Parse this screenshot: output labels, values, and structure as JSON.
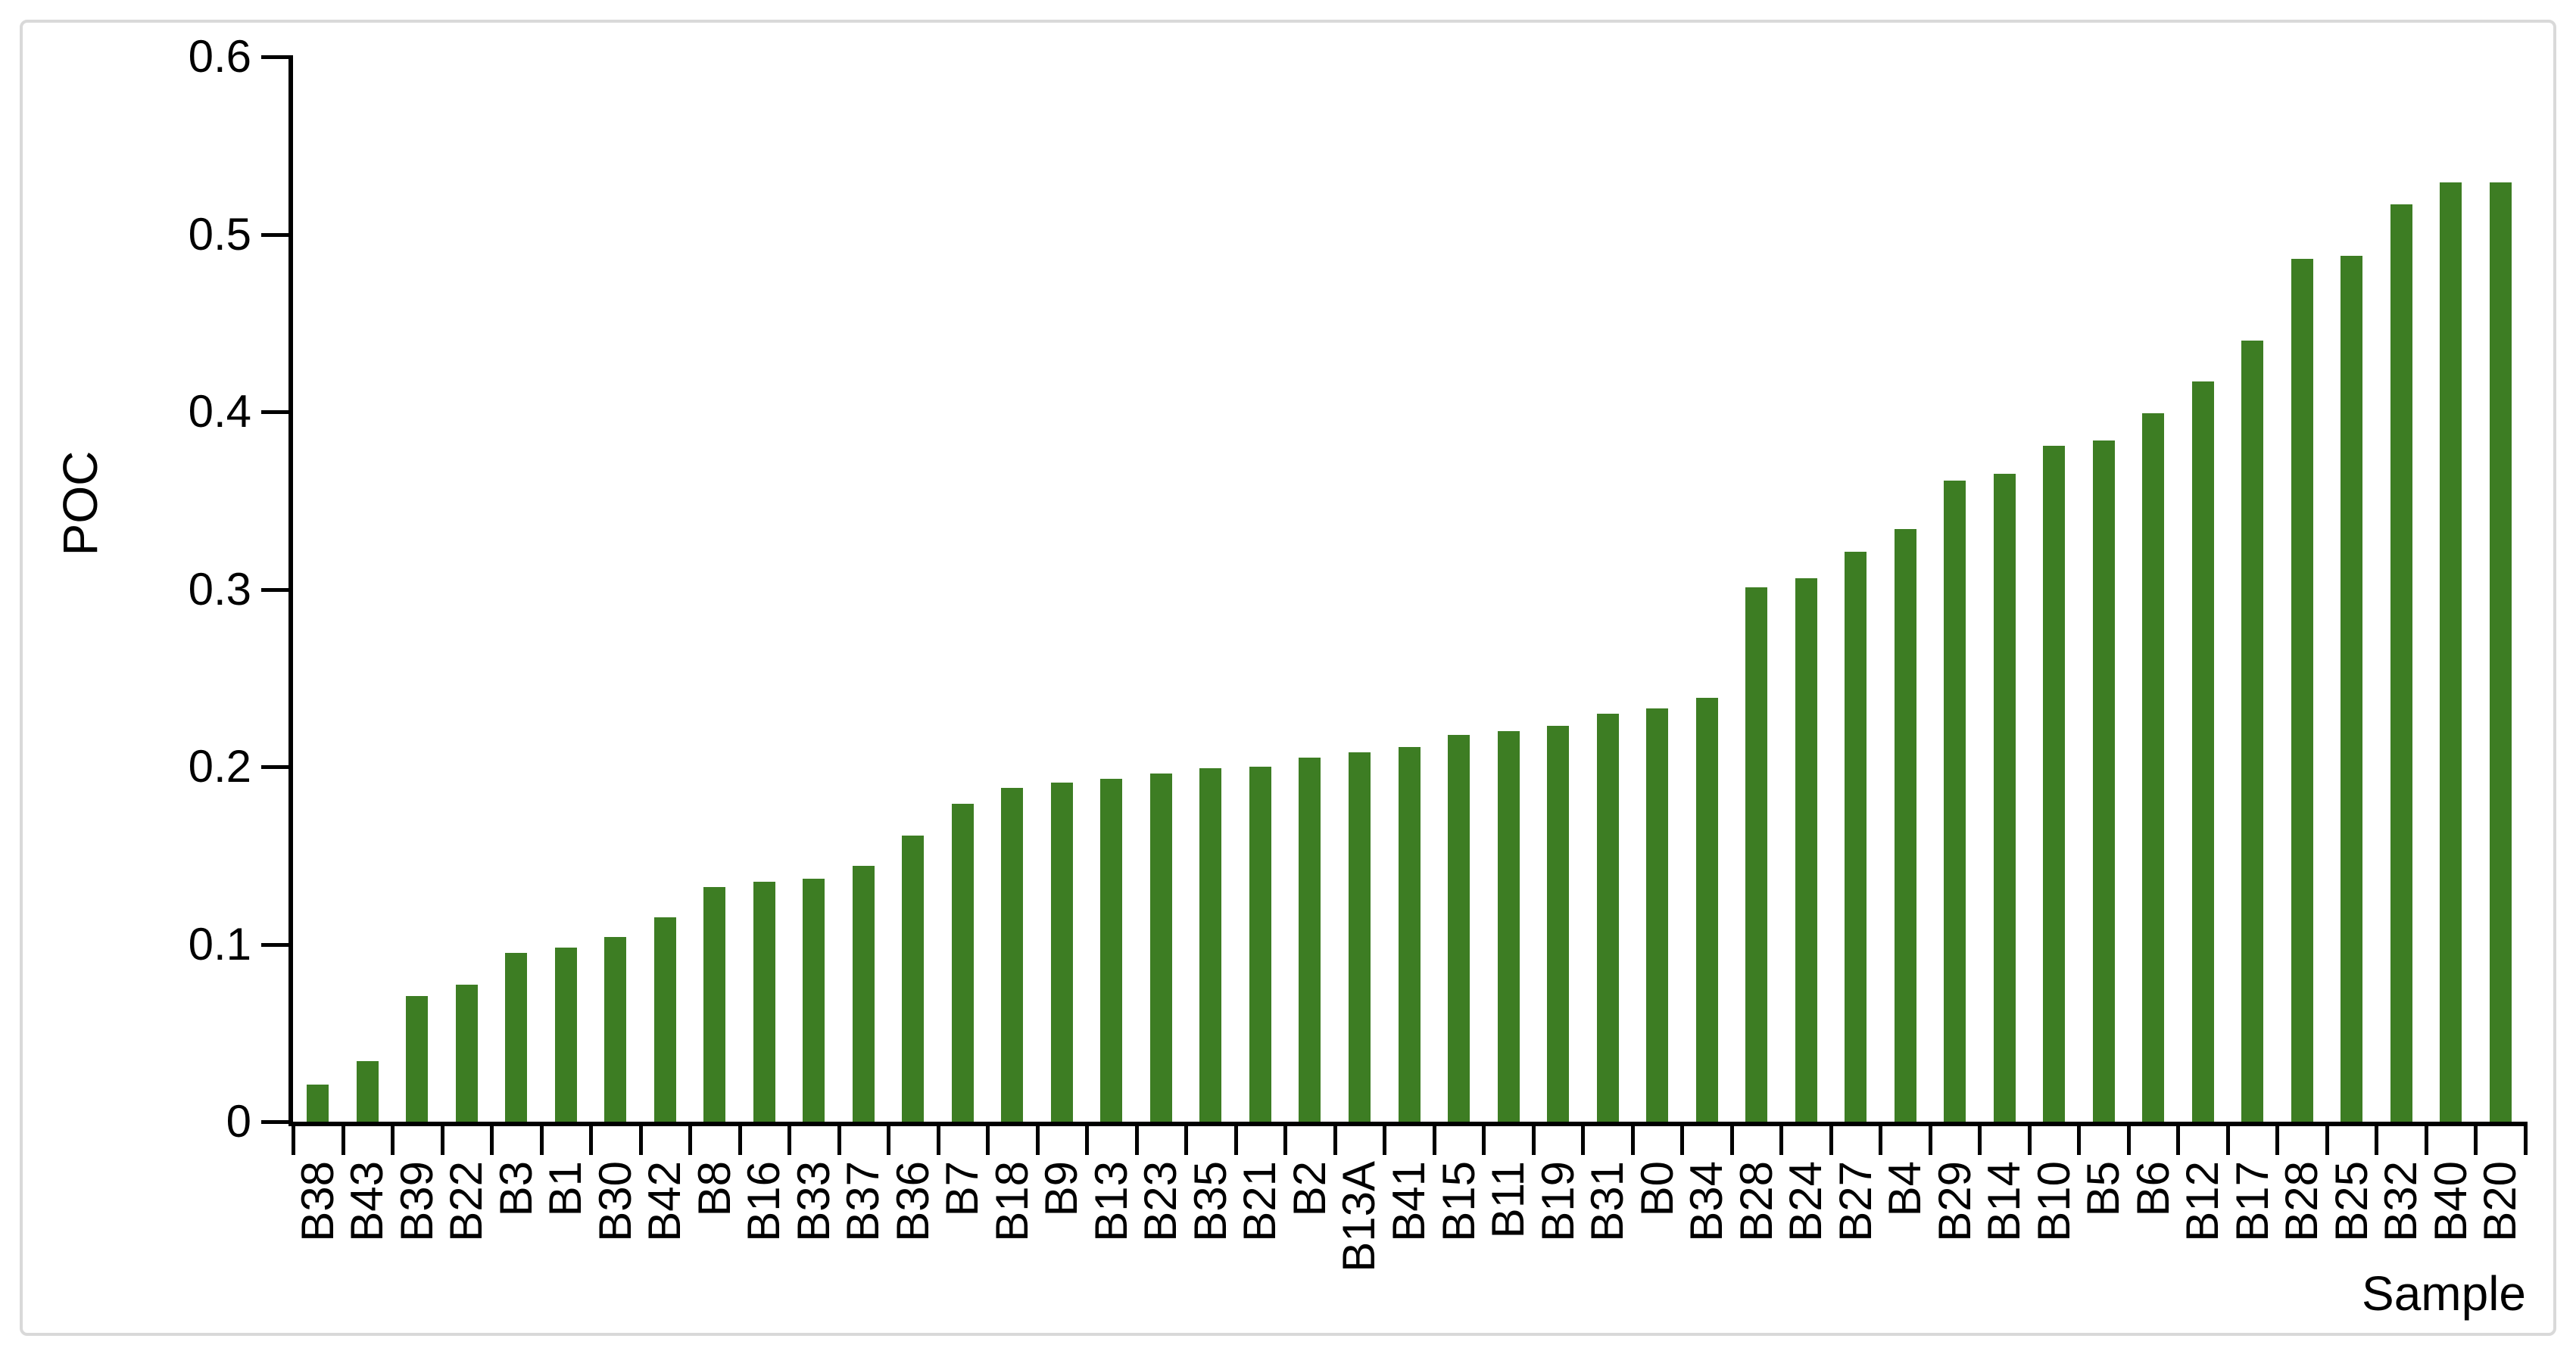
{
  "chart_data": {
    "type": "bar",
    "title": "",
    "xlabel": "Sample",
    "ylabel": "POC",
    "categories": [
      "B38",
      "B43",
      "B39",
      "B22",
      "B3",
      "B1",
      "B30",
      "B42",
      "B8",
      "B16",
      "B33",
      "B37",
      "B36",
      "B7",
      "B18",
      "B9",
      "B13",
      "B23",
      "B35",
      "B21",
      "B2",
      "B13A",
      "B41",
      "B15",
      "B11",
      "B19",
      "B31",
      "B0",
      "B34",
      "B28",
      "B24",
      "B27",
      "B4",
      "B29",
      "B14",
      "B10",
      "B5",
      "B6",
      "B12",
      "B17",
      "B28",
      "B25",
      "B32",
      "B40",
      "B20"
    ],
    "values": [
      0.021,
      0.034,
      0.071,
      0.077,
      0.095,
      0.098,
      0.104,
      0.115,
      0.132,
      0.135,
      0.137,
      0.144,
      0.161,
      0.179,
      0.188,
      0.191,
      0.193,
      0.196,
      0.199,
      0.2,
      0.205,
      0.208,
      0.211,
      0.218,
      0.22,
      0.223,
      0.23,
      0.233,
      0.239,
      0.301,
      0.306,
      0.321,
      0.334,
      0.361,
      0.365,
      0.381,
      0.384,
      0.399,
      0.417,
      0.44,
      0.486,
      0.488,
      0.517,
      0.529,
      0.529
    ],
    "ylim": [
      0,
      0.6
    ],
    "yticks": [
      0,
      0.1,
      0.2,
      0.3,
      0.4,
      0.5,
      0.6
    ],
    "ytick_labels": [
      "0",
      "0.1",
      "0.2",
      "0.3",
      "0.4",
      "0.5",
      "0.6"
    ],
    "grid": false,
    "legend": false,
    "bar_color": "#3D7D23",
    "axis_color": "#000000",
    "frame_border_color": "#D9D9D9"
  }
}
